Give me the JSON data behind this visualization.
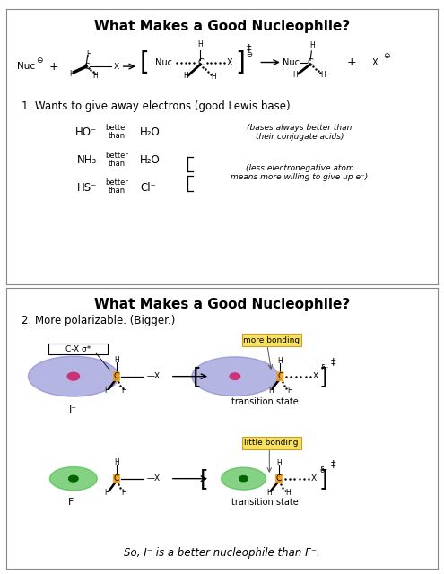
{
  "bg_color": "#ffffff",
  "panel_bg": "#ffffff",
  "border_color": "#888888",
  "title1": "What Makes a Good Nucleophile?",
  "title2": "What Makes a Good Nucleophile?",
  "point1": "1. Wants to give away electrons (good Lewis base).",
  "point2": "2. More polarizable. (Bigger.)",
  "footer": "So, I⁻ is a better nucleophile than F⁻.",
  "comparisons": [
    {
      "left": "HO⁻",
      "right": "H₂O",
      "note": "(bases always better than\ntheir conjugate acids)"
    },
    {
      "left": "NH₃",
      "right": "H₂O",
      "note": ""
    },
    {
      "left": "HS⁻",
      "right": "Cl⁻",
      "note": "(less electronegative atom\nmeans more willing to give up e⁻)"
    }
  ],
  "label_more_bonding": "more bonding",
  "label_little_bonding": "little bonding",
  "label_transition_state": "transition state",
  "label_cx_sigma": "C-X σ*",
  "label_I": "I⁻",
  "label_F": "F⁻",
  "color_I_blob": "#7878cc",
  "color_F_blob": "#44bb44",
  "color_nuc_dot_I": "#cc3377",
  "color_nuc_dot_F": "#44cc44",
  "color_carbon_body": "#f0a020",
  "title_fontsize": 11,
  "body_fontsize": 8.5
}
